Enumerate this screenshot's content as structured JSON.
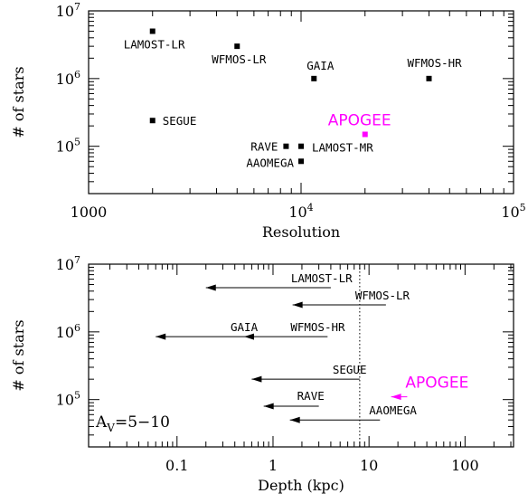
{
  "chart_data": [
    {
      "type": "scatter",
      "title": "",
      "xlabel": "Resolution",
      "ylabel": "# of stars",
      "xscale": "log",
      "yscale": "log",
      "xlim": [
        1000,
        100000
      ],
      "ylim": [
        20000,
        10000000
      ],
      "xticks": [
        {
          "value": 1000,
          "label": "1000"
        },
        {
          "value": 10000,
          "label": "10⁴"
        },
        {
          "value": 100000,
          "label": "10⁵"
        }
      ],
      "yticks": [
        {
          "value": 100000,
          "label": "10⁵"
        },
        {
          "value": 1000000,
          "label": "10⁶"
        },
        {
          "value": 10000000,
          "label": "10⁷"
        }
      ],
      "grid": false,
      "points": [
        {
          "name": "LAMOST-LR",
          "x": 2000,
          "y": 5000000,
          "color": "#000000"
        },
        {
          "name": "WFMOS-LR",
          "x": 5000,
          "y": 3000000,
          "color": "#000000"
        },
        {
          "name": "GAIA",
          "x": 11500,
          "y": 1000000,
          "color": "#000000"
        },
        {
          "name": "WFMOS-HR",
          "x": 40000,
          "y": 1000000,
          "color": "#000000"
        },
        {
          "name": "SEGUE",
          "x": 2000,
          "y": 240000,
          "color": "#000000"
        },
        {
          "name": "APOGEE",
          "x": 20000,
          "y": 150000,
          "color": "#ff00ff"
        },
        {
          "name": "RAVE",
          "x": 8500,
          "y": 100000,
          "color": "#000000"
        },
        {
          "name": "LAMOST-MR",
          "x": 10000,
          "y": 100000,
          "color": "#000000"
        },
        {
          "name": "AAOMEGA",
          "x": 10000,
          "y": 60000,
          "color": "#000000"
        }
      ]
    },
    {
      "type": "arrows",
      "title": "",
      "xlabel": "Depth (kpc)",
      "ylabel": "# of stars",
      "xscale": "log",
      "yscale": "log",
      "xlim": [
        0.012,
        320
      ],
      "ylim": [
        20000,
        10000000
      ],
      "xticks": [
        {
          "value": 0.1,
          "label": "0.1"
        },
        {
          "value": 1,
          "label": "1"
        },
        {
          "value": 10,
          "label": "10"
        },
        {
          "value": 100,
          "label": "100"
        }
      ],
      "yticks": [
        {
          "value": 100000,
          "label": "10⁵"
        },
        {
          "value": 1000000,
          "label": "10⁶"
        },
        {
          "value": 10000000,
          "label": "10⁷"
        }
      ],
      "grid": false,
      "annotation": "A_V=5–10",
      "annotation_main": "A",
      "annotation_sub": "V",
      "annotation_rest": "=5−10",
      "reference_line_x": 8,
      "arrows": [
        {
          "name": "LAMOST-LR",
          "x_from": 4,
          "x_to": 0.2,
          "y": 4500000,
          "color": "#000000"
        },
        {
          "name": "WFMOS-LR",
          "x_from": 15,
          "x_to": 1.6,
          "y": 2500000,
          "color": "#000000"
        },
        {
          "name": "GAIA",
          "x_from": 0.5,
          "x_to": 0.06,
          "y": 850000,
          "color": "#000000"
        },
        {
          "name": "WFMOS-HR",
          "x_from": 3.7,
          "x_to": 0.5,
          "y": 850000,
          "color": "#000000"
        },
        {
          "name": "SEGUE",
          "x_from": 8,
          "x_to": 0.6,
          "y": 200000,
          "color": "#000000"
        },
        {
          "name": "APOGEE",
          "x_from": 25,
          "x_to": 17,
          "y": 110000,
          "color": "#ff00ff"
        },
        {
          "name": "RAVE",
          "x_from": 3,
          "x_to": 0.8,
          "y": 80000,
          "color": "#000000"
        },
        {
          "name": "AAOMEGA",
          "x_from": 13,
          "x_to": 1.5,
          "y": 50000,
          "color": "#000000"
        }
      ]
    }
  ]
}
